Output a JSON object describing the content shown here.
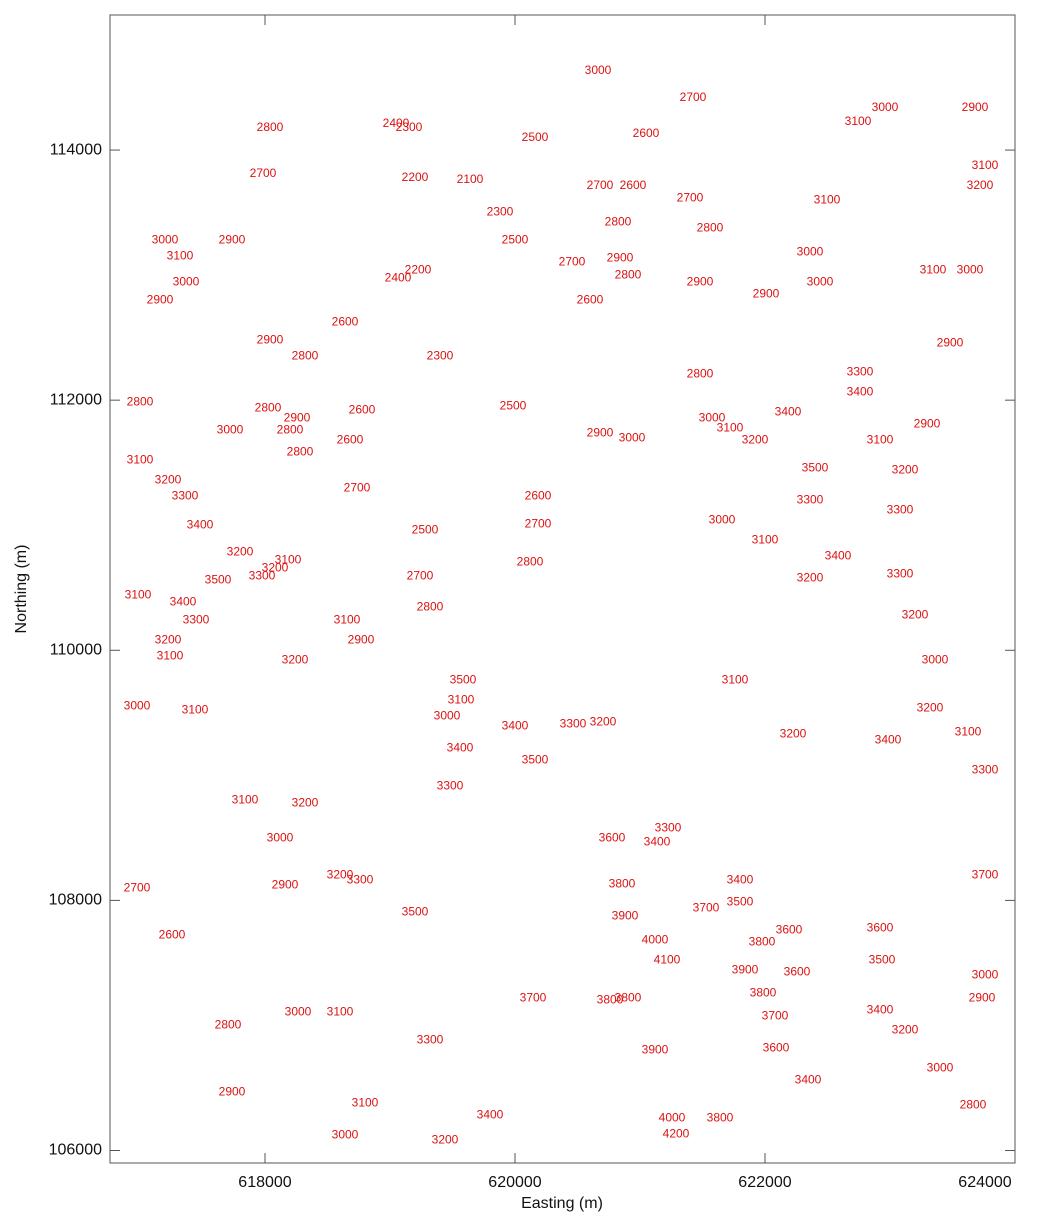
{
  "chart_data": {
    "type": "contour",
    "xlabel": "Easting  (m)",
    "ylabel": "Northing  (m)",
    "xlim": [
      616760,
      624000
    ],
    "ylim": [
      105900,
      115080
    ],
    "xticks": [
      618000,
      620000,
      622000,
      624000
    ],
    "yticks": [
      106000,
      108000,
      110000,
      112000,
      114000
    ],
    "label_color": "#dd1111",
    "labels": [
      {
        "x": 620664,
        "y": 114632,
        "level": 3000
      },
      {
        "x": 621424,
        "y": 114416,
        "level": 2700
      },
      {
        "x": 622744,
        "y": 114224,
        "level": 3100
      },
      {
        "x": 622960,
        "y": 114336,
        "level": 3000
      },
      {
        "x": 623680,
        "y": 114336,
        "level": 2900
      },
      {
        "x": 618040,
        "y": 114176,
        "level": 2800
      },
      {
        "x": 619048,
        "y": 114208,
        "level": 2400
      },
      {
        "x": 619152,
        "y": 114176,
        "level": 2300
      },
      {
        "x": 620160,
        "y": 114096,
        "level": 2500
      },
      {
        "x": 621048,
        "y": 114128,
        "level": 2600
      },
      {
        "x": 623760,
        "y": 113872,
        "level": 3100
      },
      {
        "x": 623720,
        "y": 113712,
        "level": 3200
      },
      {
        "x": 617984,
        "y": 113808,
        "level": 2700
      },
      {
        "x": 619200,
        "y": 113776,
        "level": 2200
      },
      {
        "x": 619640,
        "y": 113760,
        "level": 2100
      },
      {
        "x": 620680,
        "y": 113712,
        "level": 2700
      },
      {
        "x": 620944,
        "y": 113712,
        "level": 2600
      },
      {
        "x": 621400,
        "y": 113616,
        "level": 2700
      },
      {
        "x": 622496,
        "y": 113600,
        "level": 3100
      },
      {
        "x": 617200,
        "y": 113280,
        "level": 3000
      },
      {
        "x": 617736,
        "y": 113280,
        "level": 2900
      },
      {
        "x": 619880,
        "y": 113504,
        "level": 2300
      },
      {
        "x": 620000,
        "y": 113280,
        "level": 2500
      },
      {
        "x": 620824,
        "y": 113424,
        "level": 2800
      },
      {
        "x": 621560,
        "y": 113376,
        "level": 2800
      },
      {
        "x": 617320,
        "y": 113152,
        "level": 3100
      },
      {
        "x": 617368,
        "y": 112944,
        "level": 3000
      },
      {
        "x": 620840,
        "y": 113136,
        "level": 2900
      },
      {
        "x": 620904,
        "y": 113000,
        "level": 2800
      },
      {
        "x": 621480,
        "y": 112944,
        "level": 2900
      },
      {
        "x": 622360,
        "y": 113184,
        "level": 3000
      },
      {
        "x": 623344,
        "y": 113040,
        "level": 3100
      },
      {
        "x": 623640,
        "y": 113040,
        "level": 3000
      },
      {
        "x": 620456,
        "y": 113104,
        "level": 2700
      },
      {
        "x": 619224,
        "y": 113040,
        "level": 2200
      },
      {
        "x": 619064,
        "y": 112976,
        "level": 2400
      },
      {
        "x": 617160,
        "y": 112800,
        "level": 2900
      },
      {
        "x": 618040,
        "y": 112480,
        "level": 2900
      },
      {
        "x": 618640,
        "y": 112624,
        "level": 2600
      },
      {
        "x": 620600,
        "y": 112800,
        "level": 2600
      },
      {
        "x": 622008,
        "y": 112848,
        "level": 2900
      },
      {
        "x": 622440,
        "y": 112944,
        "level": 3000
      },
      {
        "x": 618320,
        "y": 112352,
        "level": 2800
      },
      {
        "x": 619400,
        "y": 112352,
        "level": 2300
      },
      {
        "x": 623480,
        "y": 112456,
        "level": 2900
      },
      {
        "x": 621480,
        "y": 112208,
        "level": 2800
      },
      {
        "x": 622760,
        "y": 112224,
        "level": 3300
      },
      {
        "x": 622760,
        "y": 112064,
        "level": 3400
      },
      {
        "x": 617000,
        "y": 111984,
        "level": 2800
      },
      {
        "x": 618024,
        "y": 111936,
        "level": 2800
      },
      {
        "x": 618256,
        "y": 111856,
        "level": 2900
      },
      {
        "x": 618200,
        "y": 111760,
        "level": 2800
      },
      {
        "x": 618776,
        "y": 111920,
        "level": 2600
      },
      {
        "x": 619984,
        "y": 111952,
        "level": 2500
      },
      {
        "x": 621576,
        "y": 111856,
        "level": 3000
      },
      {
        "x": 622184,
        "y": 111904,
        "level": 3400
      },
      {
        "x": 617720,
        "y": 111760,
        "level": 3000
      },
      {
        "x": 620680,
        "y": 111736,
        "level": 2900
      },
      {
        "x": 620936,
        "y": 111696,
        "level": 3000
      },
      {
        "x": 621720,
        "y": 111776,
        "level": 3100
      },
      {
        "x": 621920,
        "y": 111680,
        "level": 3200
      },
      {
        "x": 623296,
        "y": 111808,
        "level": 2900
      },
      {
        "x": 617000,
        "y": 111520,
        "level": 3100
      },
      {
        "x": 618280,
        "y": 111584,
        "level": 2800
      },
      {
        "x": 618680,
        "y": 111680,
        "level": 2600
      },
      {
        "x": 622920,
        "y": 111680,
        "level": 3100
      },
      {
        "x": 617224,
        "y": 111360,
        "level": 3200
      },
      {
        "x": 623120,
        "y": 111440,
        "level": 3200
      },
      {
        "x": 622400,
        "y": 111456,
        "level": 3500
      },
      {
        "x": 617360,
        "y": 111232,
        "level": 3300
      },
      {
        "x": 618736,
        "y": 111296,
        "level": 2700
      },
      {
        "x": 620184,
        "y": 111232,
        "level": 2600
      },
      {
        "x": 622360,
        "y": 111200,
        "level": 3300
      },
      {
        "x": 617480,
        "y": 111000,
        "level": 3400
      },
      {
        "x": 623080,
        "y": 111120,
        "level": 3300
      },
      {
        "x": 620184,
        "y": 111008,
        "level": 2700
      },
      {
        "x": 621656,
        "y": 111040,
        "level": 3000
      },
      {
        "x": 622000,
        "y": 110880,
        "level": 3100
      },
      {
        "x": 619280,
        "y": 110960,
        "level": 2500
      },
      {
        "x": 617800,
        "y": 110784,
        "level": 3200
      },
      {
        "x": 618184,
        "y": 110720,
        "level": 3100
      },
      {
        "x": 617976,
        "y": 110592,
        "level": 3300
      },
      {
        "x": 618080,
        "y": 110656,
        "level": 3200
      },
      {
        "x": 622584,
        "y": 110752,
        "level": 3400
      },
      {
        "x": 616984,
        "y": 110440,
        "level": 3100
      },
      {
        "x": 617624,
        "y": 110560,
        "level": 3500
      },
      {
        "x": 619240,
        "y": 110592,
        "level": 2700
      },
      {
        "x": 620120,
        "y": 110704,
        "level": 2800
      },
      {
        "x": 623080,
        "y": 110608,
        "level": 3300
      },
      {
        "x": 622360,
        "y": 110576,
        "level": 3200
      },
      {
        "x": 617344,
        "y": 110384,
        "level": 3400
      },
      {
        "x": 617448,
        "y": 110240,
        "level": 3300
      },
      {
        "x": 619320,
        "y": 110344,
        "level": 2800
      },
      {
        "x": 618656,
        "y": 110240,
        "level": 3100
      },
      {
        "x": 618768,
        "y": 110080,
        "level": 2900
      },
      {
        "x": 623200,
        "y": 110280,
        "level": 3200
      },
      {
        "x": 617224,
        "y": 110080,
        "level": 3200
      },
      {
        "x": 617240,
        "y": 109952,
        "level": 3100
      },
      {
        "x": 618240,
        "y": 109920,
        "level": 3200
      },
      {
        "x": 623360,
        "y": 109920,
        "level": 3000
      },
      {
        "x": 621760,
        "y": 109760,
        "level": 3100
      },
      {
        "x": 616976,
        "y": 109552,
        "level": 3000
      },
      {
        "x": 619584,
        "y": 109760,
        "level": 3500
      },
      {
        "x": 619456,
        "y": 109472,
        "level": 3000
      },
      {
        "x": 619568,
        "y": 109600,
        "level": 3100
      },
      {
        "x": 617440,
        "y": 109520,
        "level": 3100
      },
      {
        "x": 620000,
        "y": 109392,
        "level": 3400
      },
      {
        "x": 620464,
        "y": 109408,
        "level": 3300
      },
      {
        "x": 620704,
        "y": 109424,
        "level": 3200
      },
      {
        "x": 623320,
        "y": 109536,
        "level": 3200
      },
      {
        "x": 623624,
        "y": 109344,
        "level": 3100
      },
      {
        "x": 622224,
        "y": 109328,
        "level": 3200
      },
      {
        "x": 619560,
        "y": 109216,
        "level": 3400
      },
      {
        "x": 620160,
        "y": 109120,
        "level": 3500
      },
      {
        "x": 622984,
        "y": 109280,
        "level": 3400
      },
      {
        "x": 623760,
        "y": 109040,
        "level": 3300
      },
      {
        "x": 619480,
        "y": 108912,
        "level": 3300
      },
      {
        "x": 617840,
        "y": 108800,
        "level": 3100
      },
      {
        "x": 618320,
        "y": 108776,
        "level": 3200
      },
      {
        "x": 618120,
        "y": 108496,
        "level": 3000
      },
      {
        "x": 621224,
        "y": 108576,
        "level": 3300
      },
      {
        "x": 620776,
        "y": 108496,
        "level": 3600
      },
      {
        "x": 621136,
        "y": 108464,
        "level": 3400
      },
      {
        "x": 618160,
        "y": 108120,
        "level": 2900
      },
      {
        "x": 618600,
        "y": 108200,
        "level": 3200
      },
      {
        "x": 618760,
        "y": 108160,
        "level": 3300
      },
      {
        "x": 620856,
        "y": 108128,
        "level": 3800
      },
      {
        "x": 621800,
        "y": 108160,
        "level": 3400
      },
      {
        "x": 621800,
        "y": 107984,
        "level": 3500
      },
      {
        "x": 623760,
        "y": 108200,
        "level": 3700
      },
      {
        "x": 616976,
        "y": 108096,
        "level": 2700
      },
      {
        "x": 621528,
        "y": 107936,
        "level": 3700
      },
      {
        "x": 620880,
        "y": 107872,
        "level": 3900
      },
      {
        "x": 622192,
        "y": 107760,
        "level": 3600
      },
      {
        "x": 622920,
        "y": 107776,
        "level": 3600
      },
      {
        "x": 619200,
        "y": 107904,
        "level": 3500
      },
      {
        "x": 621976,
        "y": 107664,
        "level": 3800
      },
      {
        "x": 621120,
        "y": 107680,
        "level": 4000
      },
      {
        "x": 617256,
        "y": 107720,
        "level": 2600
      },
      {
        "x": 622936,
        "y": 107520,
        "level": 3500
      },
      {
        "x": 621216,
        "y": 107520,
        "level": 4100
      },
      {
        "x": 621840,
        "y": 107440,
        "level": 3900
      },
      {
        "x": 622256,
        "y": 107424,
        "level": 3600
      },
      {
        "x": 623760,
        "y": 107400,
        "level": 3000
      },
      {
        "x": 621984,
        "y": 107256,
        "level": 3800
      },
      {
        "x": 623736,
        "y": 107216,
        "level": 2900
      },
      {
        "x": 620144,
        "y": 107216,
        "level": 3700
      },
      {
        "x": 620760,
        "y": 107200,
        "level": 3800
      },
      {
        "x": 620904,
        "y": 107216,
        "level": 3800
      },
      {
        "x": 622080,
        "y": 107072,
        "level": 3700
      },
      {
        "x": 622920,
        "y": 107120,
        "level": 3400
      },
      {
        "x": 617704,
        "y": 107000,
        "level": 2800
      },
      {
        "x": 618264,
        "y": 107104,
        "level": 3000
      },
      {
        "x": 618600,
        "y": 107104,
        "level": 3100
      },
      {
        "x": 623120,
        "y": 106960,
        "level": 3200
      },
      {
        "x": 622088,
        "y": 106816,
        "level": 3600
      },
      {
        "x": 619320,
        "y": 106880,
        "level": 3300
      },
      {
        "x": 621120,
        "y": 106800,
        "level": 3900
      },
      {
        "x": 623400,
        "y": 106656,
        "level": 3000
      },
      {
        "x": 622344,
        "y": 106560,
        "level": 3400
      },
      {
        "x": 617736,
        "y": 106464,
        "level": 2900
      },
      {
        "x": 618800,
        "y": 106376,
        "level": 3100
      },
      {
        "x": 619800,
        "y": 106280,
        "level": 3400
      },
      {
        "x": 623664,
        "y": 106360,
        "level": 2800
      },
      {
        "x": 621256,
        "y": 106256,
        "level": 4000
      },
      {
        "x": 621640,
        "y": 106256,
        "level": 3800
      },
      {
        "x": 618640,
        "y": 106120,
        "level": 3000
      },
      {
        "x": 619440,
        "y": 106080,
        "level": 3200
      },
      {
        "x": 621288,
        "y": 106128,
        "level": 4200
      }
    ]
  }
}
